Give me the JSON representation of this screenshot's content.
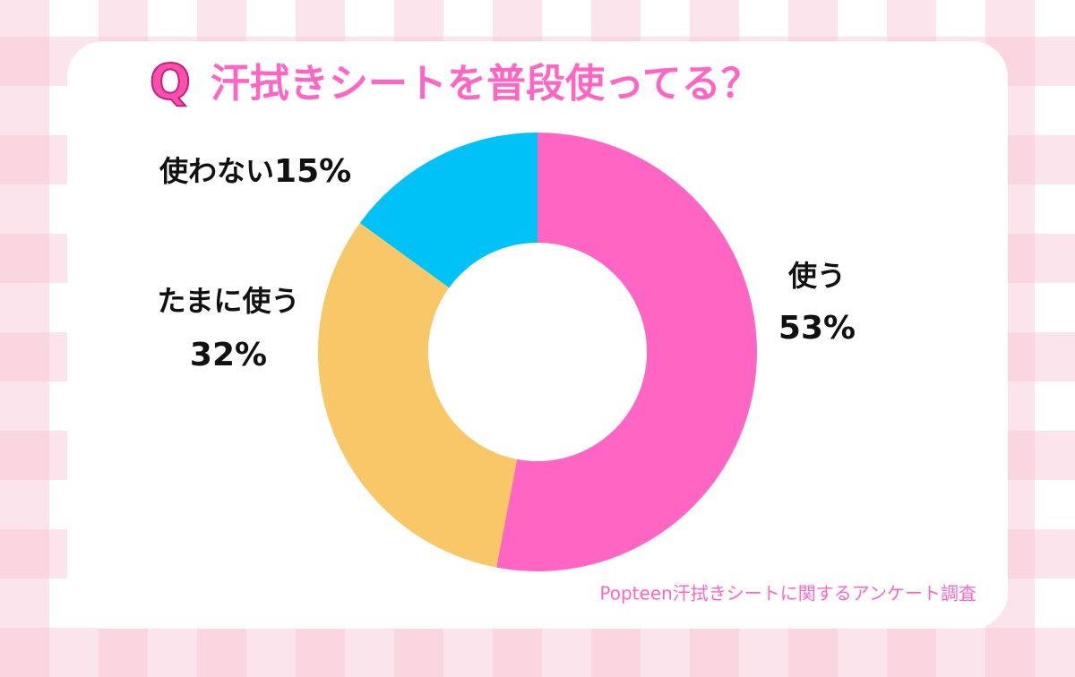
{
  "chart_data": {
    "type": "donut",
    "badge": "Q",
    "title": "汗拭きシートを普段使ってる？",
    "categories": [
      "使う",
      "たまに使う",
      "使わない"
    ],
    "values": [
      53,
      32,
      15
    ],
    "value_labels": [
      "53%",
      "32%",
      "15%"
    ],
    "colors": [
      "#ff66c4",
      "#f7c768",
      "#00c2f7"
    ],
    "source": "Popteen汗拭きシートに関するアンケート調査"
  }
}
